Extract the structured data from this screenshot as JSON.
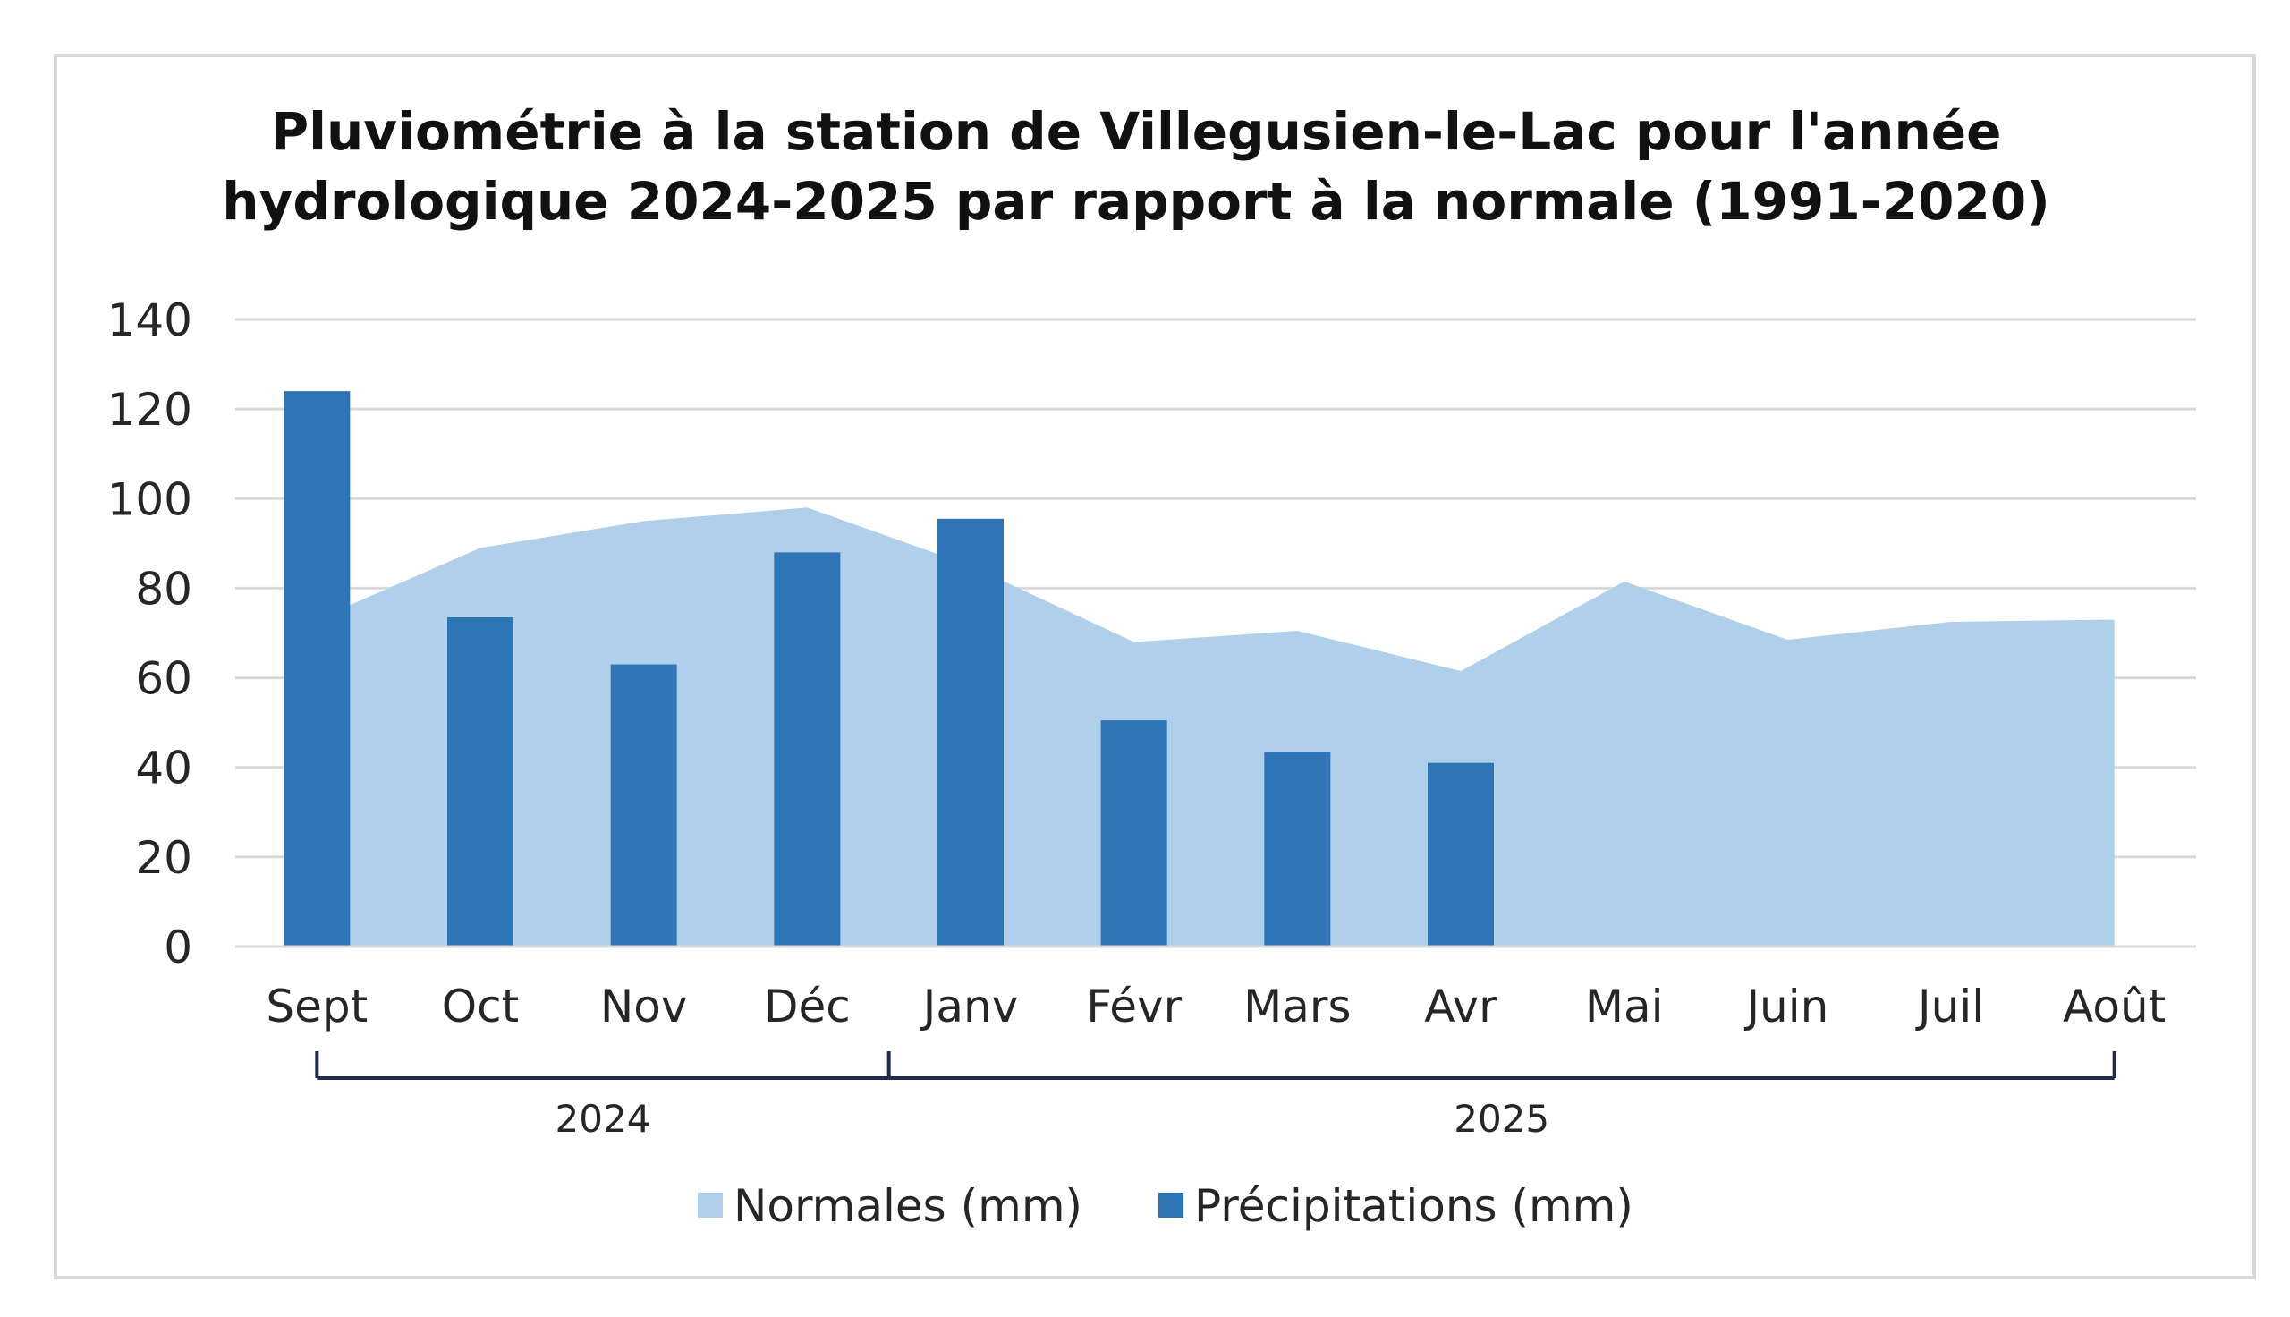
{
  "chart_data": {
    "type": "bar",
    "title_lines": [
      "Pluviométrie à la station de Villegusien-le-Lac pour l'année",
      "hydrologique 2024-2025 par rapport à la normale (1991-2020)"
    ],
    "categories": [
      "Sept",
      "Oct",
      "Nov",
      "Déc",
      "Janv",
      "Févr",
      "Mars",
      "Avr",
      "Mai",
      "Juin",
      "Juil",
      "Août"
    ],
    "category_groups": [
      {
        "label": "2024",
        "span": [
          0,
          3
        ]
      },
      {
        "label": "2025",
        "span": [
          4,
          11
        ]
      }
    ],
    "y_ticks": [
      "0",
      "20",
      "40",
      "60",
      "80",
      "100",
      "120",
      "140"
    ],
    "ylim": [
      0,
      140
    ],
    "grid": true,
    "legend_position": "bottom",
    "series": [
      {
        "name": "Normales (mm)",
        "kind": "area",
        "color": "#afcfea",
        "values": [
          73,
          89,
          95,
          98,
          85,
          68,
          70.5,
          61.5,
          81.5,
          68.5,
          72.5,
          73
        ]
      },
      {
        "name": "Précipitations (mm)",
        "kind": "bar",
        "color": "#2e75b6",
        "values": [
          124,
          73.5,
          63,
          88,
          95.5,
          50.5,
          43.5,
          41,
          null,
          null,
          null,
          null
        ]
      }
    ]
  }
}
